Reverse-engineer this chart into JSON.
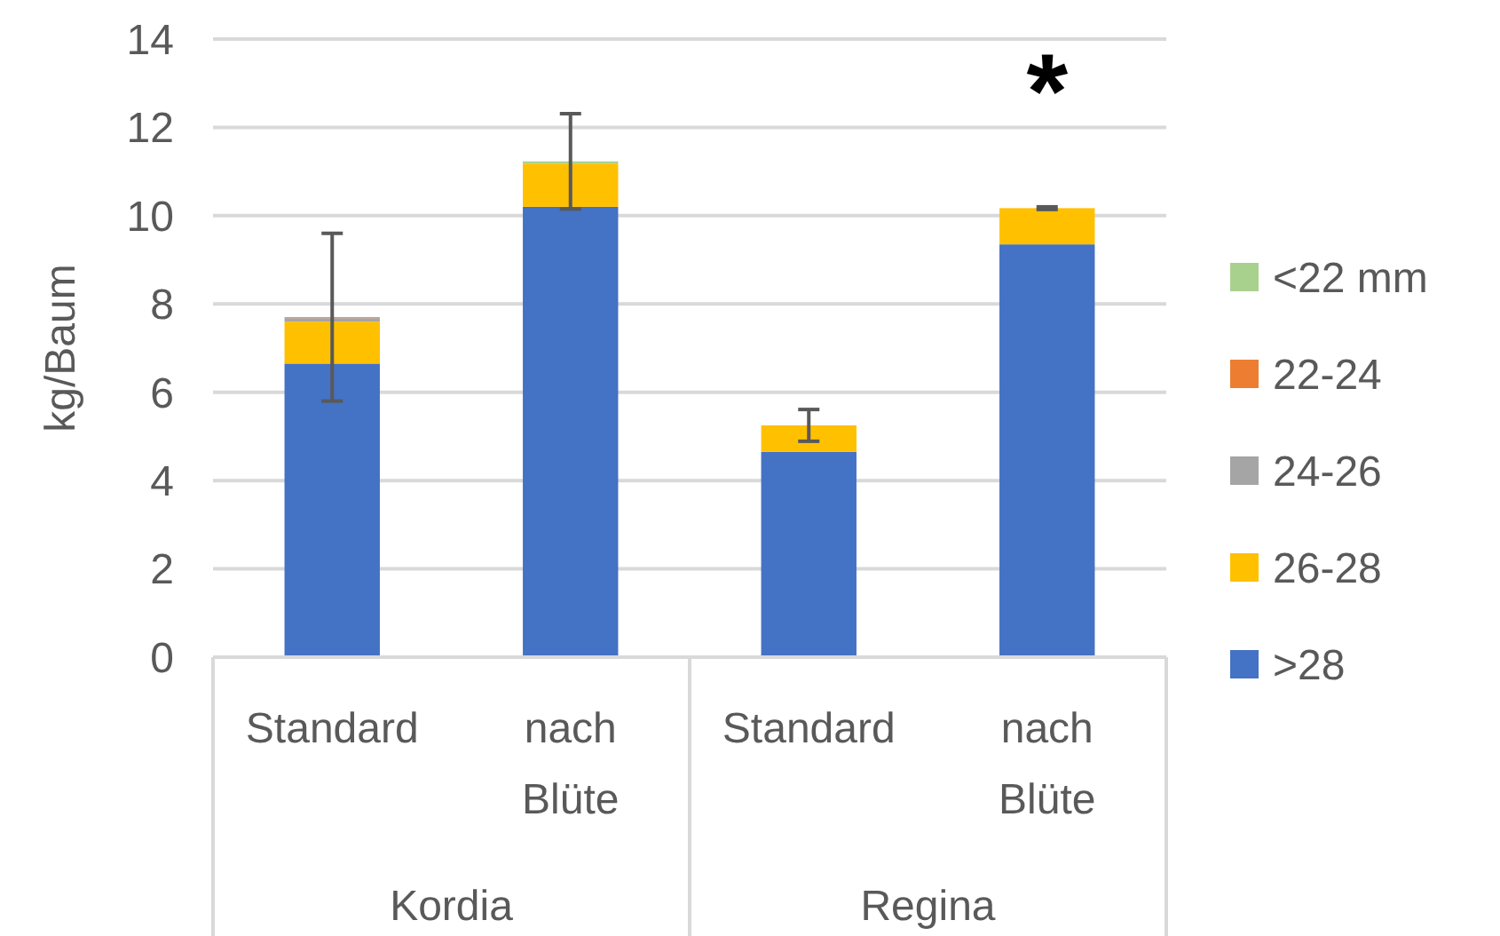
{
  "chart_data": {
    "type": "bar",
    "stacked": true,
    "ylabel": "kg/Baum",
    "categories": [
      "Standard",
      "nach Blüte",
      "Standard",
      "nach Blüte"
    ],
    "series": [
      {
        "name": ">28",
        "color": "#4472c4",
        "values": [
          6.65,
          10.2,
          4.65,
          9.35
        ]
      },
      {
        "name": "26-28",
        "color": "#ffc000",
        "values": [
          0.95,
          0.98,
          0.6,
          0.82
        ]
      },
      {
        "name": "24-26",
        "color": "#a5a5a5",
        "values": [
          0.08,
          null,
          0,
          0
        ]
      },
      {
        "name": "22-24",
        "color": "#ed7d31",
        "values": [
          0.02,
          0,
          0,
          0
        ]
      },
      {
        "name": "<22 mm",
        "color": "#a9d18e",
        "values": [
          0,
          0.05,
          0,
          0
        ],
        "errors": [
          1.9,
          1.08,
          0.36,
          0.03
        ]
      }
    ],
    "ylim": [
      0,
      14
    ],
    "yticks": [
      0,
      2,
      4,
      6,
      8,
      10,
      12,
      14
    ],
    "grid": "y",
    "legend": "right",
    "annotations": [
      "*",
      "Kordia",
      "Regina"
    ]
  }
}
